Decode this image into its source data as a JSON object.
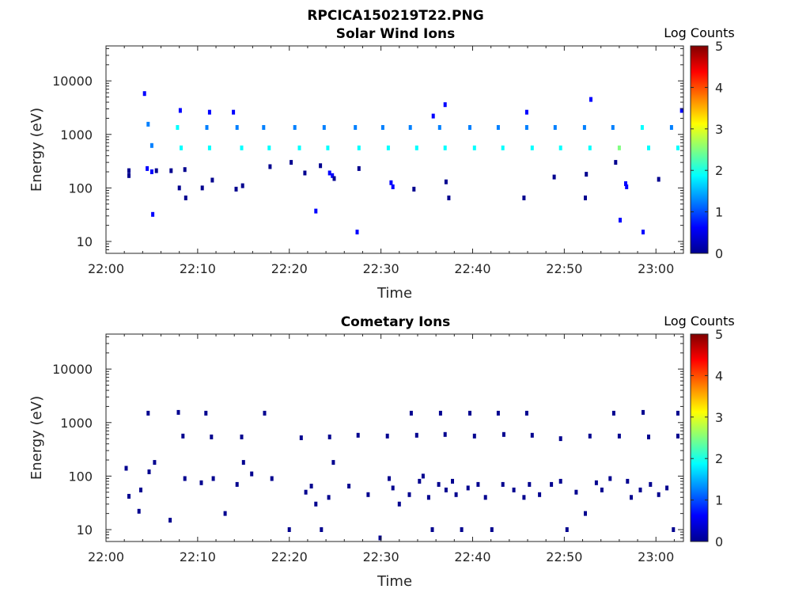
{
  "figure_title": "RPCICA150219T22.PNG",
  "colors": {
    "axis": "#262626",
    "frame": "#262626",
    "colormap": [
      "#00008f",
      "#0000ff",
      "#0080ff",
      "#00ffff",
      "#80ff80",
      "#ffff00",
      "#ff8000",
      "#ff0000",
      "#800000"
    ]
  },
  "chart_data": [
    {
      "type": "heatmap",
      "title": "Solar Wind Ions",
      "xlabel": "Time",
      "ylabel": "Energy (eV)",
      "x_ticks": [
        "22:00",
        "22:10",
        "22:20",
        "22:30",
        "22:40",
        "22:50",
        "23:00"
      ],
      "x_range_minutes": [
        0,
        63
      ],
      "y_scale": "log",
      "y_ticks": [
        "10",
        "100",
        "1000",
        "10000"
      ],
      "y_range": [
        6,
        45000
      ],
      "colorbar": {
        "label": "Log Counts",
        "range": [
          0,
          5
        ],
        "ticks": [
          "0",
          "1",
          "2",
          "3",
          "4",
          "5"
        ]
      },
      "points": [
        {
          "t": 4.2,
          "e": 5800,
          "v": 0.4
        },
        {
          "t": 2.5,
          "e": 210,
          "v": 0.3
        },
        {
          "t": 2.5,
          "e": 170,
          "v": 0.3
        },
        {
          "t": 4.5,
          "e": 230,
          "v": 0.4
        },
        {
          "t": 5.0,
          "e": 200,
          "v": 0.4
        },
        {
          "t": 5.5,
          "e": 210,
          "v": 0.3
        },
        {
          "t": 5.1,
          "e": 32,
          "v": 0.5
        },
        {
          "t": 7.1,
          "e": 210,
          "v": 0.3
        },
        {
          "t": 8.1,
          "e": 2800,
          "v": 0.4
        },
        {
          "t": 8.0,
          "e": 100,
          "v": 0.3
        },
        {
          "t": 8.7,
          "e": 65,
          "v": 0.3
        },
        {
          "t": 8.6,
          "e": 220,
          "v": 0.3
        },
        {
          "t": 10.5,
          "e": 100,
          "v": 0.3
        },
        {
          "t": 11.3,
          "e": 2600,
          "v": 0.4
        },
        {
          "t": 11.6,
          "e": 140,
          "v": 0.3
        },
        {
          "t": 13.9,
          "e": 2600,
          "v": 0.4
        },
        {
          "t": 14.2,
          "e": 95,
          "v": 0.3
        },
        {
          "t": 14.9,
          "e": 110,
          "v": 0.3
        },
        {
          "t": 17.9,
          "e": 250,
          "v": 0.3
        },
        {
          "t": 20.2,
          "e": 300,
          "v": 0.3
        },
        {
          "t": 21.7,
          "e": 190,
          "v": 0.3
        },
        {
          "t": 22.9,
          "e": 37,
          "v": 0.5
        },
        {
          "t": 23.4,
          "e": 260,
          "v": 0.3
        },
        {
          "t": 24.4,
          "e": 190,
          "v": 0.6
        },
        {
          "t": 24.7,
          "e": 170,
          "v": 0.6
        },
        {
          "t": 24.9,
          "e": 150,
          "v": 0.3
        },
        {
          "t": 27.4,
          "e": 15,
          "v": 0.6
        },
        {
          "t": 27.6,
          "e": 230,
          "v": 0.3
        },
        {
          "t": 31.1,
          "e": 125,
          "v": 0.5
        },
        {
          "t": 31.3,
          "e": 105,
          "v": 0.5
        },
        {
          "t": 33.6,
          "e": 95,
          "v": 0.3
        },
        {
          "t": 35.7,
          "e": 2200,
          "v": 0.4
        },
        {
          "t": 37.0,
          "e": 3600,
          "v": 0.4
        },
        {
          "t": 37.1,
          "e": 130,
          "v": 0.3
        },
        {
          "t": 37.4,
          "e": 65,
          "v": 0.2
        },
        {
          "t": 45.6,
          "e": 65,
          "v": 0.2
        },
        {
          "t": 45.9,
          "e": 2600,
          "v": 0.4
        },
        {
          "t": 48.9,
          "e": 160,
          "v": 0.3
        },
        {
          "t": 52.3,
          "e": 65,
          "v": 0.3
        },
        {
          "t": 52.4,
          "e": 180,
          "v": 0.3
        },
        {
          "t": 52.9,
          "e": 4500,
          "v": 0.4
        },
        {
          "t": 55.6,
          "e": 300,
          "v": 0.3
        },
        {
          "t": 56.1,
          "e": 25,
          "v": 0.5
        },
        {
          "t": 56.7,
          "e": 120,
          "v": 0.5
        },
        {
          "t": 56.8,
          "e": 105,
          "v": 0.5
        },
        {
          "t": 58.6,
          "e": 15,
          "v": 0.6
        },
        {
          "t": 60.3,
          "e": 145,
          "v": 0.3
        },
        {
          "t": 62.8,
          "e": 2800,
          "v": 0.4
        },
        {
          "t": 7.8,
          "e": 1350,
          "v": 1.8
        },
        {
          "t": 11.0,
          "e": 1350,
          "v": 1.5
        },
        {
          "t": 14.3,
          "e": 1350,
          "v": 1.4
        },
        {
          "t": 17.2,
          "e": 1350,
          "v": 1.2
        },
        {
          "t": 20.6,
          "e": 1350,
          "v": 1.5
        },
        {
          "t": 23.8,
          "e": 1350,
          "v": 1.3
        },
        {
          "t": 27.2,
          "e": 1350,
          "v": 1.4
        },
        {
          "t": 30.2,
          "e": 1350,
          "v": 1.2
        },
        {
          "t": 33.2,
          "e": 1350,
          "v": 1.1
        },
        {
          "t": 36.4,
          "e": 1350,
          "v": 1.2
        },
        {
          "t": 39.7,
          "e": 1350,
          "v": 1.3
        },
        {
          "t": 42.8,
          "e": 1350,
          "v": 1.1
        },
        {
          "t": 45.9,
          "e": 1350,
          "v": 1.1
        },
        {
          "t": 49.0,
          "e": 1350,
          "v": 1.2
        },
        {
          "t": 52.2,
          "e": 1350,
          "v": 1.4
        },
        {
          "t": 55.3,
          "e": 1350,
          "v": 1.5
        },
        {
          "t": 58.5,
          "e": 1350,
          "v": 1.6
        },
        {
          "t": 61.7,
          "e": 1350,
          "v": 1.5
        },
        {
          "t": 4.6,
          "e": 1550,
          "v": 1.4
        },
        {
          "t": 5.0,
          "e": 620,
          "v": 1.4
        },
        {
          "t": 8.2,
          "e": 560,
          "v": 1.9
        },
        {
          "t": 11.3,
          "e": 560,
          "v": 1.9
        },
        {
          "t": 14.8,
          "e": 560,
          "v": 1.8
        },
        {
          "t": 17.8,
          "e": 560,
          "v": 1.7
        },
        {
          "t": 21.1,
          "e": 560,
          "v": 1.9
        },
        {
          "t": 24.2,
          "e": 560,
          "v": 1.8
        },
        {
          "t": 27.6,
          "e": 560,
          "v": 2.0
        },
        {
          "t": 30.8,
          "e": 560,
          "v": 1.9
        },
        {
          "t": 33.9,
          "e": 560,
          "v": 2.0
        },
        {
          "t": 37.0,
          "e": 560,
          "v": 1.9
        },
        {
          "t": 40.2,
          "e": 560,
          "v": 2.0
        },
        {
          "t": 43.3,
          "e": 560,
          "v": 1.8
        },
        {
          "t": 46.5,
          "e": 560,
          "v": 1.9
        },
        {
          "t": 49.6,
          "e": 560,
          "v": 1.8
        },
        {
          "t": 52.8,
          "e": 560,
          "v": 2.1
        },
        {
          "t": 56.0,
          "e": 560,
          "v": 2.2
        },
        {
          "t": 59.2,
          "e": 560,
          "v": 2.0
        },
        {
          "t": 62.4,
          "e": 560,
          "v": 1.9
        }
      ]
    },
    {
      "type": "heatmap",
      "title": "Cometary Ions",
      "xlabel": "Time",
      "ylabel": "Energy (eV)",
      "x_ticks": [
        "22:00",
        "22:10",
        "22:20",
        "22:30",
        "22:40",
        "22:50",
        "23:00"
      ],
      "x_range_minutes": [
        0,
        63
      ],
      "y_scale": "log",
      "y_ticks": [
        "10",
        "100",
        "1000",
        "10000"
      ],
      "y_range": [
        6,
        45000
      ],
      "colorbar": {
        "label": "Log Counts",
        "range": [
          0,
          5
        ],
        "ticks": [
          "0",
          "1",
          "2",
          "3",
          "4",
          "5"
        ]
      },
      "points": [
        {
          "t": 4.6,
          "e": 1500,
          "v": 0.3
        },
        {
          "t": 7.9,
          "e": 1550,
          "v": 0.3
        },
        {
          "t": 10.9,
          "e": 1500,
          "v": 0.3
        },
        {
          "t": 17.3,
          "e": 1500,
          "v": 0.3
        },
        {
          "t": 33.3,
          "e": 1500,
          "v": 0.3
        },
        {
          "t": 36.5,
          "e": 1500,
          "v": 0.3
        },
        {
          "t": 39.7,
          "e": 1500,
          "v": 0.3
        },
        {
          "t": 42.8,
          "e": 1500,
          "v": 0.3
        },
        {
          "t": 45.9,
          "e": 1500,
          "v": 0.3
        },
        {
          "t": 55.4,
          "e": 1500,
          "v": 0.3
        },
        {
          "t": 58.6,
          "e": 1550,
          "v": 0.3
        },
        {
          "t": 62.4,
          "e": 1500,
          "v": 0.3
        },
        {
          "t": 8.4,
          "e": 560,
          "v": 0.3
        },
        {
          "t": 11.5,
          "e": 540,
          "v": 0.3
        },
        {
          "t": 14.8,
          "e": 540,
          "v": 0.3
        },
        {
          "t": 21.3,
          "e": 520,
          "v": 0.3
        },
        {
          "t": 24.4,
          "e": 540,
          "v": 0.3
        },
        {
          "t": 27.5,
          "e": 580,
          "v": 0.3
        },
        {
          "t": 30.7,
          "e": 560,
          "v": 0.3
        },
        {
          "t": 33.9,
          "e": 580,
          "v": 0.3
        },
        {
          "t": 37.0,
          "e": 600,
          "v": 0.3
        },
        {
          "t": 40.2,
          "e": 560,
          "v": 0.3
        },
        {
          "t": 43.4,
          "e": 600,
          "v": 0.3
        },
        {
          "t": 46.5,
          "e": 580,
          "v": 0.3
        },
        {
          "t": 49.6,
          "e": 500,
          "v": 0.3
        },
        {
          "t": 52.8,
          "e": 560,
          "v": 0.3
        },
        {
          "t": 56.0,
          "e": 560,
          "v": 0.3
        },
        {
          "t": 59.2,
          "e": 540,
          "v": 0.3
        },
        {
          "t": 62.4,
          "e": 560,
          "v": 0.3
        },
        {
          "t": 2.2,
          "e": 140,
          "v": 0.3
        },
        {
          "t": 2.5,
          "e": 42,
          "v": 0.3
        },
        {
          "t": 3.6,
          "e": 22,
          "v": 0.3
        },
        {
          "t": 3.8,
          "e": 55,
          "v": 0.3
        },
        {
          "t": 4.7,
          "e": 120,
          "v": 0.3
        },
        {
          "t": 5.3,
          "e": 180,
          "v": 0.3
        },
        {
          "t": 7.0,
          "e": 15,
          "v": 0.3
        },
        {
          "t": 8.6,
          "e": 90,
          "v": 0.3
        },
        {
          "t": 10.4,
          "e": 75,
          "v": 0.3
        },
        {
          "t": 11.7,
          "e": 90,
          "v": 0.3
        },
        {
          "t": 13.0,
          "e": 20,
          "v": 0.3
        },
        {
          "t": 14.3,
          "e": 70,
          "v": 0.3
        },
        {
          "t": 15.0,
          "e": 180,
          "v": 0.3
        },
        {
          "t": 15.9,
          "e": 110,
          "v": 0.3
        },
        {
          "t": 18.1,
          "e": 90,
          "v": 0.3
        },
        {
          "t": 20.0,
          "e": 10,
          "v": 0.3
        },
        {
          "t": 21.8,
          "e": 50,
          "v": 0.3
        },
        {
          "t": 22.4,
          "e": 65,
          "v": 0.3
        },
        {
          "t": 22.9,
          "e": 30,
          "v": 0.3
        },
        {
          "t": 23.5,
          "e": 10,
          "v": 0.3
        },
        {
          "t": 24.3,
          "e": 40,
          "v": 0.3
        },
        {
          "t": 24.8,
          "e": 180,
          "v": 0.3
        },
        {
          "t": 26.5,
          "e": 65,
          "v": 0.3
        },
        {
          "t": 28.6,
          "e": 45,
          "v": 0.3
        },
        {
          "t": 29.9,
          "e": 7,
          "v": 0.3
        },
        {
          "t": 30.9,
          "e": 90,
          "v": 0.3
        },
        {
          "t": 31.3,
          "e": 60,
          "v": 0.3
        },
        {
          "t": 32.0,
          "e": 30,
          "v": 0.3
        },
        {
          "t": 33.1,
          "e": 45,
          "v": 0.3
        },
        {
          "t": 34.2,
          "e": 80,
          "v": 0.3
        },
        {
          "t": 34.6,
          "e": 100,
          "v": 0.3
        },
        {
          "t": 35.2,
          "e": 40,
          "v": 0.3
        },
        {
          "t": 35.6,
          "e": 10,
          "v": 0.3
        },
        {
          "t": 36.3,
          "e": 70,
          "v": 0.3
        },
        {
          "t": 37.1,
          "e": 55,
          "v": 0.3
        },
        {
          "t": 37.8,
          "e": 80,
          "v": 0.3
        },
        {
          "t": 38.2,
          "e": 45,
          "v": 0.3
        },
        {
          "t": 38.8,
          "e": 10,
          "v": 0.3
        },
        {
          "t": 39.5,
          "e": 60,
          "v": 0.3
        },
        {
          "t": 40.6,
          "e": 70,
          "v": 0.3
        },
        {
          "t": 41.4,
          "e": 40,
          "v": 0.3
        },
        {
          "t": 42.1,
          "e": 10,
          "v": 0.3
        },
        {
          "t": 43.3,
          "e": 70,
          "v": 0.3
        },
        {
          "t": 44.5,
          "e": 55,
          "v": 0.3
        },
        {
          "t": 45.6,
          "e": 40,
          "v": 0.3
        },
        {
          "t": 46.2,
          "e": 70,
          "v": 0.3
        },
        {
          "t": 47.3,
          "e": 45,
          "v": 0.3
        },
        {
          "t": 48.6,
          "e": 70,
          "v": 0.3
        },
        {
          "t": 49.6,
          "e": 80,
          "v": 0.3
        },
        {
          "t": 50.3,
          "e": 10,
          "v": 0.3
        },
        {
          "t": 51.3,
          "e": 50,
          "v": 0.3
        },
        {
          "t": 52.3,
          "e": 20,
          "v": 0.3
        },
        {
          "t": 53.5,
          "e": 75,
          "v": 0.3
        },
        {
          "t": 54.1,
          "e": 55,
          "v": 0.3
        },
        {
          "t": 55.0,
          "e": 90,
          "v": 0.3
        },
        {
          "t": 56.9,
          "e": 80,
          "v": 0.3
        },
        {
          "t": 57.3,
          "e": 40,
          "v": 0.3
        },
        {
          "t": 58.3,
          "e": 55,
          "v": 0.3
        },
        {
          "t": 59.4,
          "e": 70,
          "v": 0.3
        },
        {
          "t": 60.3,
          "e": 45,
          "v": 0.3
        },
        {
          "t": 61.2,
          "e": 60,
          "v": 0.3
        },
        {
          "t": 61.9,
          "e": 10,
          "v": 0.3
        }
      ]
    }
  ]
}
